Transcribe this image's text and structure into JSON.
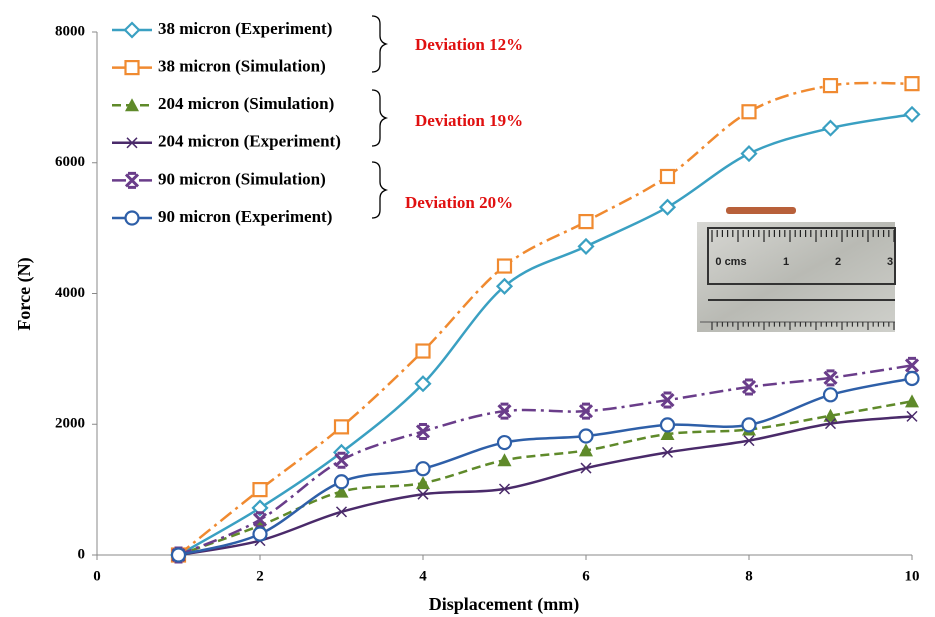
{
  "chart_data": {
    "type": "line",
    "x_label": "Displacement (mm)",
    "y_label": "Force (N)",
    "x": [
      1,
      2,
      3,
      4,
      5,
      6,
      7,
      8,
      9,
      10
    ],
    "xlim": [
      0,
      10
    ],
    "xticks": [
      0,
      2,
      4,
      6,
      8,
      10
    ],
    "ylim": [
      0,
      8000
    ],
    "yticks": [
      0,
      2000,
      4000,
      6000,
      8000
    ],
    "series": [
      {
        "name": "38 micron (Experiment)",
        "color": "#3aa0c2",
        "marker": "diamond",
        "dash": "solid",
        "values": [
          0,
          720,
          1570,
          2620,
          4110,
          4720,
          5320,
          6140,
          6530,
          6740
        ]
      },
      {
        "name": "38 micron (Simulation)",
        "color": "#f08a30",
        "marker": "square",
        "dash": "dashdot",
        "values": [
          0,
          1000,
          1960,
          3120,
          4420,
          5100,
          5790,
          6780,
          7180,
          7210
        ]
      },
      {
        "name": "204 micron (Simulation)",
        "color": "#5f8a2a",
        "marker": "triangle",
        "dash": "dash",
        "values": [
          0,
          450,
          970,
          1100,
          1450,
          1600,
          1850,
          1920,
          2130,
          2350
        ]
      },
      {
        "name": "204 micron (Experiment)",
        "color": "#4a2a6a",
        "marker": "x",
        "dash": "solid",
        "values": [
          0,
          220,
          660,
          930,
          1010,
          1330,
          1570,
          1750,
          2010,
          2120
        ]
      },
      {
        "name": "90 micron (Simulation)",
        "color": "#6a3d8a",
        "marker": "star",
        "dash": "dashdot",
        "values": [
          0,
          540,
          1450,
          1890,
          2200,
          2200,
          2370,
          2570,
          2710,
          2900
        ]
      },
      {
        "name": "90 micron (Experiment)",
        "color": "#2e5fa8",
        "marker": "circle",
        "dash": "solid",
        "values": [
          0,
          320,
          1120,
          1320,
          1720,
          1820,
          1990,
          1990,
          2450,
          2700
        ]
      }
    ],
    "annotations": [
      "Deviation 12%",
      "Deviation 19%",
      "Deviation 20%"
    ],
    "photo_labels": [
      "0 cms",
      "1",
      "2",
      "3"
    ]
  }
}
